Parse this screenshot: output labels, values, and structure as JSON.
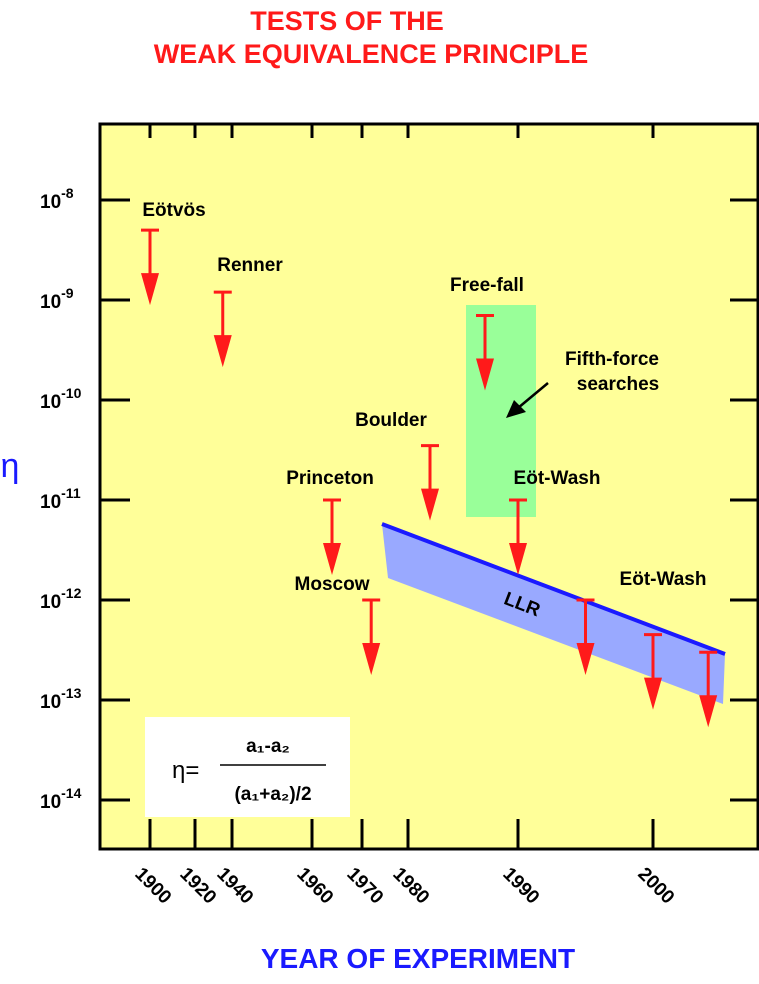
{
  "chart_data": {
    "type": "scatter",
    "title_line1": "TESTS OF THE",
    "title_line2": "WEAK EQUIVALENCE PRINCIPLE",
    "xlabel": "YEAR OF EXPERIMENT",
    "ylabel": "η",
    "y_scale": "log",
    "ylim": [
      4e-15,
      2e-08
    ],
    "x_ticks": [
      "1900",
      "1920",
      "1940",
      "1960",
      "1970",
      "1980",
      "1990",
      "2000"
    ],
    "y_ticks": [
      {
        "base": "10",
        "exp": "-8",
        "value": 1e-08
      },
      {
        "base": "10",
        "exp": "-9",
        "value": 1e-09
      },
      {
        "base": "10",
        "exp": "-10",
        "value": 1e-10
      },
      {
        "base": "10",
        "exp": "-11",
        "value": 1e-11
      },
      {
        "base": "10",
        "exp": "-12",
        "value": 1e-12
      },
      {
        "base": "10",
        "exp": "-13",
        "value": 1e-13
      },
      {
        "base": "10",
        "exp": "-14",
        "value": 1e-14
      }
    ],
    "upper_limits": [
      {
        "label": "Eötvös",
        "year": "1900",
        "eta": 5e-09
      },
      {
        "label": "Renner",
        "year": "1935",
        "eta": 1.2e-09
      },
      {
        "label": "Princeton",
        "year": "1964",
        "eta": 1e-11
      },
      {
        "label": "Moscow",
        "year": "1972",
        "eta": 1e-12
      },
      {
        "label": "Boulder",
        "year": "1982",
        "eta": 3.5e-11
      },
      {
        "label": "Free-fall",
        "year": "1987",
        "eta": 7e-10
      },
      {
        "label": "Eöt-Wash",
        "year": "1990",
        "eta": 1e-11
      },
      {
        "label": "Eöt-Wash",
        "year": "1995",
        "eta": 1e-12
      },
      {
        "label": "",
        "year": "2000",
        "eta": 4.5e-13
      },
      {
        "label": "",
        "year": "2004",
        "eta": 3e-13
      }
    ],
    "fifth_force_region": {
      "label_line1": "Fifth-force",
      "label_line2": "searches",
      "eta_top": 9e-10,
      "eta_bottom": 6e-12
    },
    "llr_band": {
      "label": "LLR"
    },
    "formula": {
      "lhs": "η=",
      "numerator": "a₁-a₂",
      "denominator": "(a₁+a₂)/2"
    },
    "colors": {
      "background": "#ffff99",
      "limits": "#ff1a1a",
      "llr_band": "#99a9ff",
      "llr_line": "#1a1aff",
      "fifth_force": "#99ff99",
      "title": "#ff1a1a",
      "xlabel": "#1a1aff"
    }
  }
}
